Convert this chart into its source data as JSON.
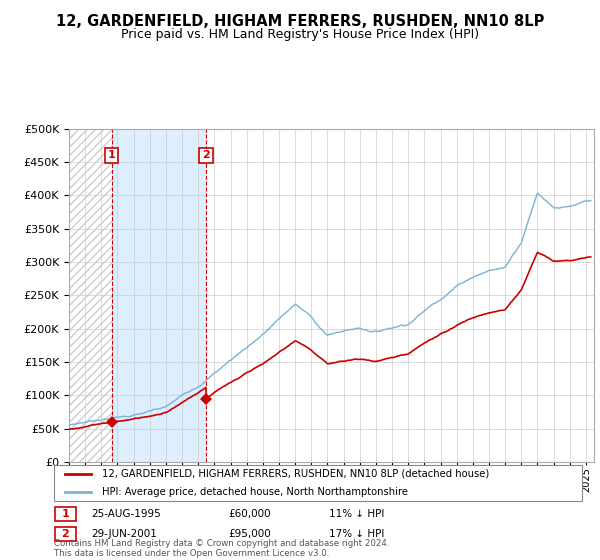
{
  "title": "12, GARDENFIELD, HIGHAM FERRERS, RUSHDEN, NN10 8LP",
  "subtitle": "Price paid vs. HM Land Registry's House Price Index (HPI)",
  "ylim": [
    0,
    500000
  ],
  "yticks": [
    0,
    50000,
    100000,
    150000,
    200000,
    250000,
    300000,
    350000,
    400000,
    450000,
    500000
  ],
  "xlim_start": 1993.0,
  "xlim_end": 2025.5,
  "legend_line1": "12, GARDENFIELD, HIGHAM FERRERS, RUSHDEN, NN10 8LP (detached house)",
  "legend_line2": "HPI: Average price, detached house, North Northamptonshire",
  "sale1_date": "25-AUG-1995",
  "sale1_price": "£60,000",
  "sale1_hpi": "11% ↓ HPI",
  "sale1_x": 1995.65,
  "sale1_y": 60000,
  "sale2_date": "29-JUN-2001",
  "sale2_price": "£95,000",
  "sale2_hpi": "17% ↓ HPI",
  "sale2_x": 2001.49,
  "sale2_y": 95000,
  "red_line_color": "#cc0000",
  "blue_line_color": "#7ab3d4",
  "shade_color": "#ddeeff",
  "hatch_color": "#cccccc",
  "background_color": "#ffffff",
  "grid_color": "#cccccc",
  "footnote": "Contains HM Land Registry data © Crown copyright and database right 2024.\nThis data is licensed under the Open Government Licence v3.0.",
  "title_fontsize": 10.5,
  "subtitle_fontsize": 9,
  "axis_fontsize": 8
}
